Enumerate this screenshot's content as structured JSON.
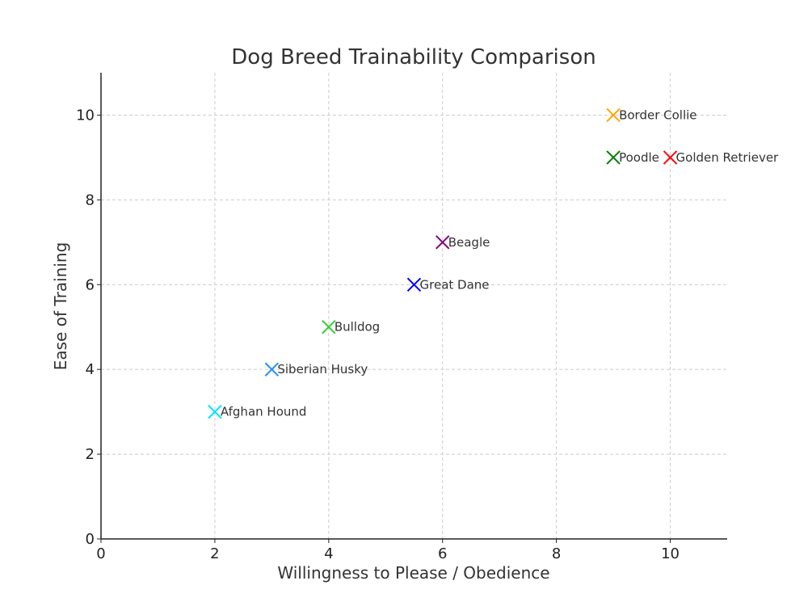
{
  "chart_data": {
    "type": "scatter",
    "title": "Dog Breed Trainability Comparison",
    "xlabel": "Willingness to Please / Obedience",
    "ylabel": "Ease of Training",
    "xlim": [
      0,
      11
    ],
    "ylim": [
      0,
      11
    ],
    "xticks": [
      0,
      2,
      4,
      6,
      8,
      10
    ],
    "yticks": [
      0,
      2,
      4,
      6,
      8,
      10
    ],
    "grid": true,
    "marker": "x",
    "points": [
      {
        "name": "Border Collie",
        "x": 9,
        "y": 10,
        "color": "#FFA500"
      },
      {
        "name": "Poodle",
        "x": 9,
        "y": 9,
        "color": "#008000"
      },
      {
        "name": "Golden Retriever",
        "x": 10,
        "y": 9,
        "color": "#FF0000"
      },
      {
        "name": "Beagle",
        "x": 6,
        "y": 7,
        "color": "#800080"
      },
      {
        "name": "Great Dane",
        "x": 5.5,
        "y": 6,
        "color": "#0000FF"
      },
      {
        "name": "Bulldog",
        "x": 4,
        "y": 5,
        "color": "#32CD32"
      },
      {
        "name": "Siberian Husky",
        "x": 3,
        "y": 4,
        "color": "#1E90FF"
      },
      {
        "name": "Afghan Hound",
        "x": 2,
        "y": 3,
        "color": "#00E5FF"
      }
    ]
  }
}
